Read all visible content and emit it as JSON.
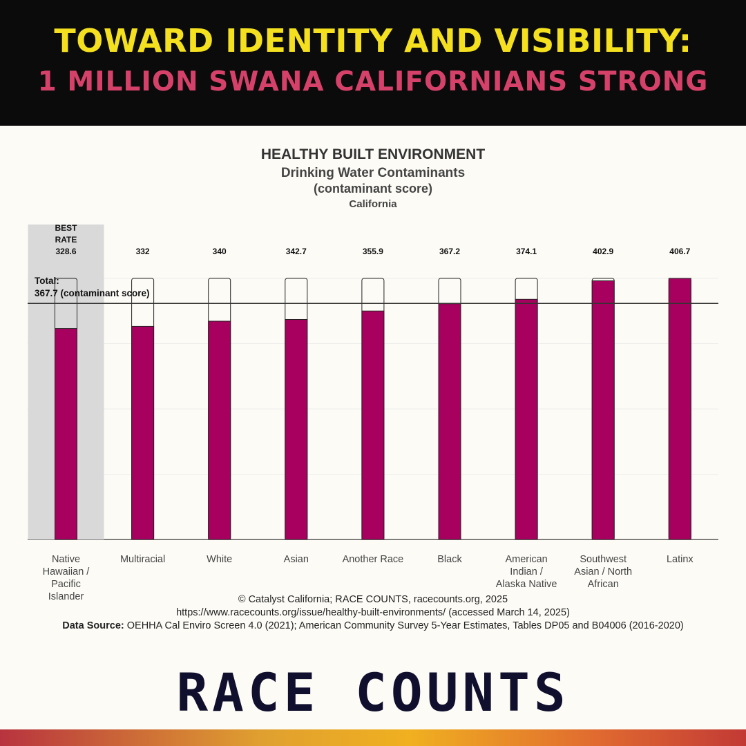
{
  "banner": {
    "line1": "TOWARD IDENTITY AND VISIBILITY:",
    "line2": "1 MILLION SWANA CALIFORNIANS STRONG"
  },
  "colors": {
    "bar": "#a8005f",
    "best_band": "#d9d9d9",
    "banner_bg": "#0b0b0b",
    "line1": "#f4e01f",
    "line2": "#d6416a",
    "brand": "#10102e"
  },
  "chart_data": {
    "type": "bar",
    "title": "HEALTHY BUILT ENVIRONMENT",
    "subtitle": "Drinking Water Contaminants",
    "unit_label": "(contaminant score)",
    "geography": "California",
    "categories": [
      [
        "Native",
        "Hawaiian /",
        "Pacific",
        "Islander"
      ],
      [
        "Multiracial"
      ],
      [
        "White"
      ],
      [
        "Asian"
      ],
      [
        "Another Race"
      ],
      [
        "Black"
      ],
      [
        "American",
        "Indian /",
        "Alaska Native"
      ],
      [
        "Southwest",
        "Asian / North",
        "African"
      ],
      [
        "Latinx"
      ]
    ],
    "values": [
      328.6,
      332,
      340,
      342.7,
      355.9,
      367.2,
      374.1,
      402.9,
      406.7
    ],
    "value_labels": [
      "328.6",
      "332",
      "340",
      "342.7",
      "355.9",
      "367.2",
      "374.1",
      "402.9",
      "406.7"
    ],
    "best_rate": {
      "index": 0,
      "label_lines": [
        "BEST",
        "RATE"
      ]
    },
    "total": {
      "value": 367.7,
      "label_lines": [
        "Total:",
        "367.7 (contaminant score)"
      ]
    },
    "ylim": [
      0,
      406.7
    ],
    "grid": true
  },
  "footer": {
    "line1": "© Catalyst California; RACE COUNTS, racecounts.org, 2025",
    "line2": "https://www.racecounts.org/issue/healthy-built-environments/ (accessed March 14, 2025)",
    "source_label": "Data Source:",
    "source_text": " OEHHA Cal Enviro Screen 4.0 (2021); American Community Survey 5-Year Estimates, Tables DP05 and B04006 (2016-2020)"
  },
  "brand": "RACE COUNTS"
}
